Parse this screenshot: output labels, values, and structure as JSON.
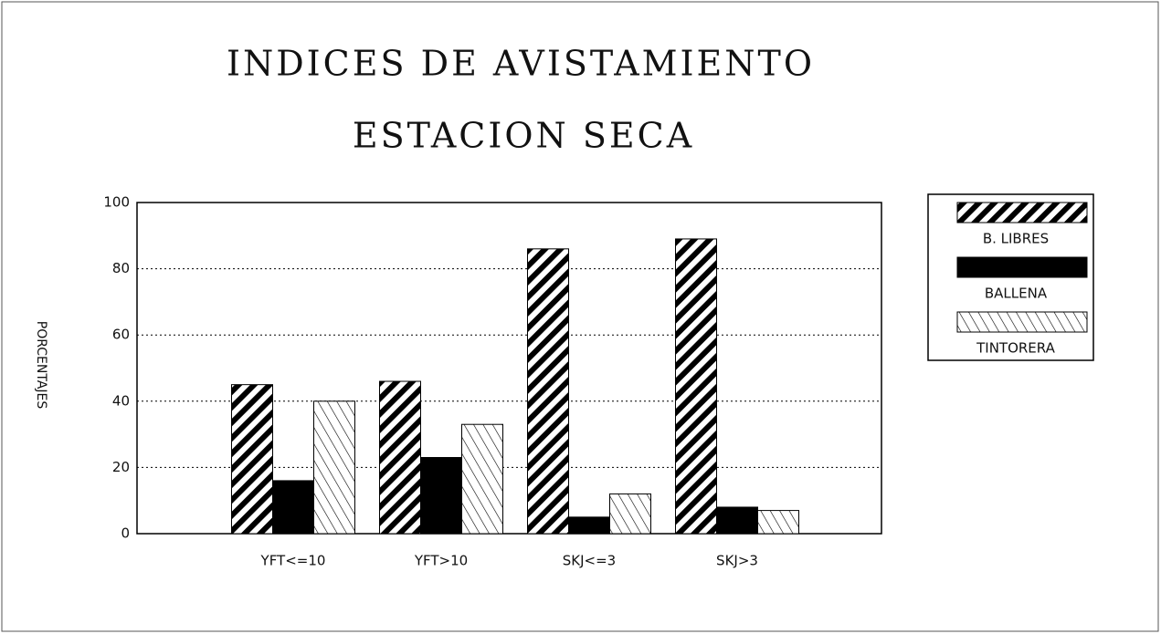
{
  "chart_data": {
    "type": "bar",
    "title": "INDICES DE AVISTAMIENTO",
    "subtitle": "ESTACION SECA",
    "y_label": "PORCENTAJES",
    "categories": [
      "YFT<=10",
      "YFT>10",
      "SKJ<=3",
      "SKJ>3"
    ],
    "series": [
      {
        "name": "B. LIBRES",
        "color": "#000000",
        "values": [
          45,
          46,
          86,
          89
        ]
      },
      {
        "name": "BALLENA",
        "color": "#000000",
        "values": [
          16,
          23,
          5,
          8
        ]
      },
      {
        "name": "TINTORERA",
        "color": "#000000",
        "values": [
          40,
          33,
          12,
          7
        ]
      }
    ],
    "ylim": [
      0,
      100
    ],
    "yticks": [
      0,
      20,
      40,
      60,
      80,
      100
    ],
    "grid": true,
    "legend": "right"
  }
}
